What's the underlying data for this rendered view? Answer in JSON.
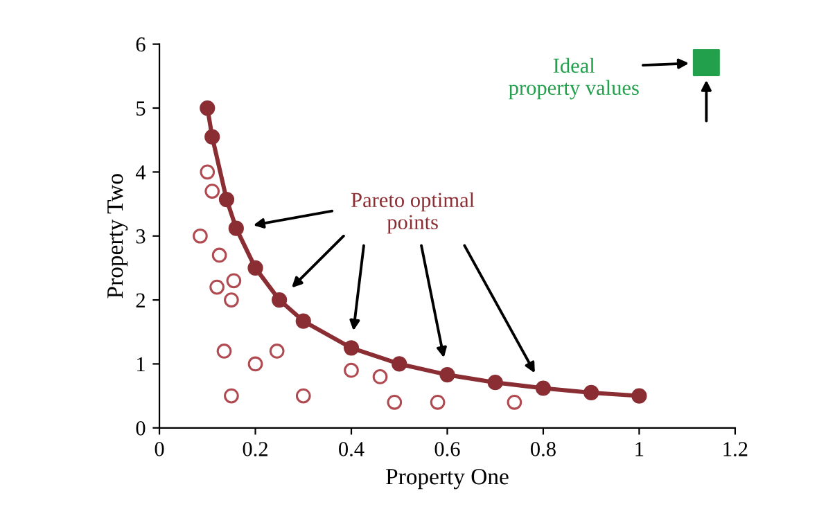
{
  "chart_data": {
    "type": "line",
    "xlabel": "Property One",
    "ylabel": "Property Two",
    "xlim": [
      0,
      1.2
    ],
    "xticks": [
      0,
      0.2,
      0.4,
      0.6,
      0.8,
      1,
      1.2
    ],
    "ylim": [
      0,
      6
    ],
    "yticks": [
      0,
      1,
      2,
      3,
      4,
      5,
      6
    ],
    "grid": false,
    "legend": false,
    "series": [
      {
        "name": "Pareto optimal\npoints",
        "marker": "circle",
        "color": "#8b2e33",
        "x": [
          0.1,
          0.11,
          0.14,
          0.16,
          0.2,
          0.25,
          0.3,
          0.4,
          0.5,
          0.6,
          0.7,
          0.8,
          0.9,
          1.0
        ],
        "values": [
          5.0,
          4.55,
          3.57,
          3.12,
          2.5,
          2.0,
          1.67,
          1.25,
          1.0,
          0.83,
          0.71,
          0.62,
          0.55,
          0.5
        ]
      },
      {
        "type": "scatter",
        "marker": "circle",
        "color": "#b04a50",
        "x": [
          0.1,
          0.11,
          0.085,
          0.125,
          0.155,
          0.12,
          0.15,
          0.135,
          0.2,
          0.245,
          0.15,
          0.3,
          0.4,
          0.46,
          0.49,
          0.58,
          0.74
        ],
        "values": [
          4.0,
          3.7,
          3.0,
          2.7,
          2.3,
          2.2,
          2.0,
          1.2,
          1.0,
          1.2,
          0.5,
          0.5,
          0.9,
          0.8,
          0.4,
          0.4,
          0.4
        ]
      },
      {
        "name": "Ideal\nproperty values",
        "type": "scatter",
        "marker": "square",
        "color": "#22a04b",
        "x": [
          1.14
        ],
        "values": [
          5.71
        ]
      }
    ]
  }
}
